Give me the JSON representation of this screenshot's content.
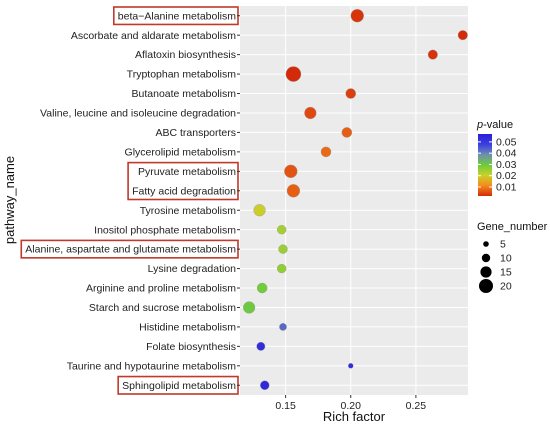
{
  "chart_data": {
    "type": "scatter",
    "xlabel": "Rich factor",
    "ylabel": "pathway_name",
    "xlim": [
      0.115,
      0.29
    ],
    "xticks": [
      0.15,
      0.2,
      0.25
    ],
    "xtick_labels": [
      "0.15",
      "0.20",
      "0.25"
    ],
    "grid": true,
    "legend_position": "right",
    "points": [
      {
        "pathway": "beta−Alanine metabolism",
        "rich_factor": 0.205,
        "p_value": 0.003,
        "gene_number": 18,
        "highlighted": true
      },
      {
        "pathway": "Ascorbate and aldarate metabolism",
        "rich_factor": 0.286,
        "p_value": 0.002,
        "gene_number": 12,
        "highlighted": false
      },
      {
        "pathway": "Aflatoxin biosynthesis",
        "rich_factor": 0.263,
        "p_value": 0.003,
        "gene_number": 12,
        "highlighted": false
      },
      {
        "pathway": "Tryptophan metabolism",
        "rich_factor": 0.156,
        "p_value": 0.002,
        "gene_number": 22,
        "highlighted": false
      },
      {
        "pathway": "Butanoate metabolism",
        "rich_factor": 0.2,
        "p_value": 0.004,
        "gene_number": 13,
        "highlighted": false
      },
      {
        "pathway": "Valine, leucine and isoleucine degradation",
        "rich_factor": 0.169,
        "p_value": 0.005,
        "gene_number": 16,
        "highlighted": false
      },
      {
        "pathway": "ABC transporters",
        "rich_factor": 0.197,
        "p_value": 0.007,
        "gene_number": 13,
        "highlighted": false
      },
      {
        "pathway": "Glycerolipid metabolism",
        "rich_factor": 0.181,
        "p_value": 0.008,
        "gene_number": 13,
        "highlighted": false
      },
      {
        "pathway": "Pyruvate metabolism",
        "rich_factor": 0.154,
        "p_value": 0.006,
        "gene_number": 18,
        "highlighted": true
      },
      {
        "pathway": "Fatty acid degradation",
        "rich_factor": 0.156,
        "p_value": 0.007,
        "gene_number": 18,
        "highlighted": true
      },
      {
        "pathway": "Tyrosine metabolism",
        "rich_factor": 0.13,
        "p_value": 0.02,
        "gene_number": 16,
        "highlighted": false
      },
      {
        "pathway": "Inositol phosphate metabolism",
        "rich_factor": 0.147,
        "p_value": 0.024,
        "gene_number": 11,
        "highlighted": false
      },
      {
        "pathway": "Alanine, aspartate and glutamate metabolism",
        "rich_factor": 0.148,
        "p_value": 0.025,
        "gene_number": 11,
        "highlighted": true
      },
      {
        "pathway": "Lysine degradation",
        "rich_factor": 0.147,
        "p_value": 0.026,
        "gene_number": 11,
        "highlighted": false
      },
      {
        "pathway": "Arginine and proline metabolism",
        "rich_factor": 0.132,
        "p_value": 0.029,
        "gene_number": 13,
        "highlighted": false
      },
      {
        "pathway": "Starch and sucrose metabolism",
        "rich_factor": 0.122,
        "p_value": 0.03,
        "gene_number": 16,
        "highlighted": false
      },
      {
        "pathway": "Histidine metabolism",
        "rich_factor": 0.148,
        "p_value": 0.043,
        "gene_number": 8,
        "highlighted": false
      },
      {
        "pathway": "Folate biosynthesis",
        "rich_factor": 0.131,
        "p_value": 0.053,
        "gene_number": 10,
        "highlighted": false
      },
      {
        "pathway": "Taurine and hypotaurine metabolism",
        "rich_factor": 0.2,
        "p_value": 0.053,
        "gene_number": 4,
        "highlighted": false
      },
      {
        "pathway": "Sphingolipid metabolism",
        "rich_factor": 0.134,
        "p_value": 0.054,
        "gene_number": 11,
        "highlighted": true
      }
    ],
    "color_legend": {
      "title_prefix": "p",
      "title_suffix": "-value",
      "min": 0.002,
      "max": 0.057,
      "ticks": [
        0.05,
        0.04,
        0.03,
        0.02,
        0.01
      ],
      "tick_labels": [
        "0.05",
        "0.04",
        "0.03",
        "0.02",
        "0.01"
      ],
      "gradient": [
        "#d42a0a",
        "#f58a1a",
        "#c9d12a",
        "#6ccc3a",
        "#6f8fb0",
        "#3a3fe0",
        "#2a1fd8"
      ]
    },
    "size_legend": {
      "title": "Gene_number",
      "values": [
        5,
        10,
        15,
        20
      ],
      "labels": [
        "5",
        "10",
        "15",
        "20"
      ]
    },
    "colors": {
      "panel_background": "#ebebeb",
      "grid": "#ffffff",
      "highlight_box": "#c0392b",
      "point_stroke": "#9a9a9a"
    }
  }
}
